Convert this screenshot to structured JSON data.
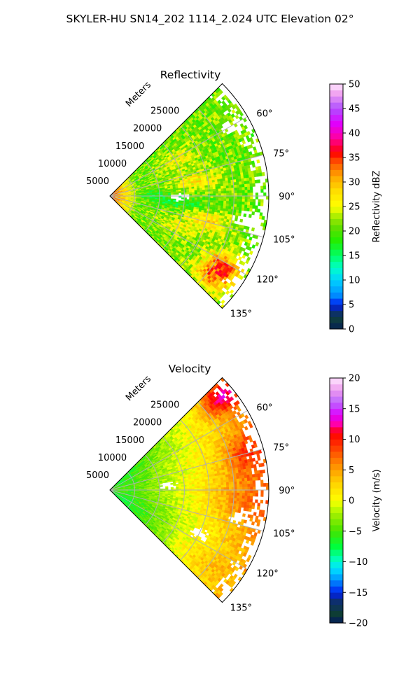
{
  "suptitle": "SKYLER-HU  SN14_202  1114_2.024 UTC Elevation 02°",
  "chart_data": [
    {
      "type": "heatmap",
      "projection": "polar sector (PPI)",
      "title": "Reflectivity",
      "range_label": "Meters",
      "range_ticks": [
        5000,
        10000,
        15000,
        20000,
        25000
      ],
      "range_tick_labels": [
        "5000",
        "10000",
        "15000",
        "20000",
        "25000"
      ],
      "rmax": 32000,
      "azimuth_range_deg": [
        45,
        135
      ],
      "azimuth_ticks": [
        60,
        75,
        90,
        105,
        120,
        135
      ],
      "azimuth_tick_labels": [
        "60°",
        "75°",
        "90°",
        "105°",
        "120°",
        "135°"
      ],
      "grid": true,
      "colorbar": {
        "label": "Reflectivity dBZ",
        "vmin": 0,
        "vmax": 50,
        "ticks": [
          0,
          5,
          10,
          15,
          20,
          25,
          30,
          35,
          40,
          45,
          50
        ],
        "tick_labels": [
          "0",
          "5",
          "10",
          "15",
          "20",
          "25",
          "30",
          "35",
          "40",
          "45",
          "50"
        ],
        "stops": [
          {
            "v": 0,
            "c": "#041b5c"
          },
          {
            "v": 1.5,
            "c": "#0e3d35"
          },
          {
            "v": 3.5,
            "c": "#0d2f6e"
          },
          {
            "v": 5,
            "c": "#0020f0"
          },
          {
            "v": 7,
            "c": "#0090ff"
          },
          {
            "v": 10,
            "c": "#00d2ff"
          },
          {
            "v": 12.5,
            "c": "#00ffc8"
          },
          {
            "v": 15,
            "c": "#00ff64"
          },
          {
            "v": 18,
            "c": "#22ee00"
          },
          {
            "v": 21,
            "c": "#66dd00"
          },
          {
            "v": 23,
            "c": "#aaee00"
          },
          {
            "v": 25,
            "c": "#ffff00"
          },
          {
            "v": 28,
            "c": "#ffe000"
          },
          {
            "v": 31,
            "c": "#ffaa00"
          },
          {
            "v": 34,
            "c": "#ff5500"
          },
          {
            "v": 36,
            "c": "#ff0000"
          },
          {
            "v": 39,
            "c": "#ff00a0"
          },
          {
            "v": 42,
            "c": "#e000ff"
          },
          {
            "v": 45,
            "c": "#b050ff"
          },
          {
            "v": 48,
            "c": "#f0a0f0"
          },
          {
            "v": 50,
            "c": "#ffe8ff"
          }
        ]
      },
      "field": {
        "base": 21,
        "near_range_boost": {
          "value": 14,
          "max_range": 6000
        },
        "features": [
          {
            "az": 62,
            "r": 15000,
            "sr": 4000,
            "sa": 7,
            "dv": 5
          },
          {
            "az": 80,
            "r": 18000,
            "sr": 5000,
            "sa": 6,
            "dv": 6
          },
          {
            "az": 95,
            "r": 13000,
            "sr": 6000,
            "sa": 7,
            "dv": -4
          },
          {
            "az": 105,
            "r": 20000,
            "sr": 5000,
            "sa": 6,
            "dv": 7
          },
          {
            "az": 115,
            "r": 15000,
            "sr": 4000,
            "sa": 5,
            "dv": 5
          },
          {
            "az": 122,
            "r": 27000,
            "sr": 4000,
            "sa": 6,
            "dv": 13
          },
          {
            "az": 130,
            "r": 26000,
            "sr": 4000,
            "sa": 5,
            "dv": 9
          },
          {
            "az": 88,
            "r": 9000,
            "sr": 3000,
            "sa": 5,
            "dv": -3
          }
        ],
        "noise": 3.5,
        "gaps": [
          {
            "az": 91,
            "r": 14000,
            "sr": 2000,
            "sa": 4
          },
          {
            "az": 100,
            "r": 28000,
            "sr": 3000,
            "sa": 5
          },
          {
            "az": 60,
            "r": 28000,
            "sr": 2500,
            "sa": 3
          }
        ],
        "ragged_edge_from": 28000
      }
    },
    {
      "type": "heatmap",
      "projection": "polar sector (PPI)",
      "title": "Velocity",
      "range_label": "Meters",
      "range_ticks": [
        5000,
        10000,
        15000,
        20000,
        25000
      ],
      "range_tick_labels": [
        "5000",
        "10000",
        "15000",
        "20000",
        "25000"
      ],
      "rmax": 32000,
      "azimuth_range_deg": [
        45,
        135
      ],
      "azimuth_ticks": [
        60,
        75,
        90,
        105,
        120,
        135
      ],
      "azimuth_tick_labels": [
        "60°",
        "75°",
        "90°",
        "105°",
        "120°",
        "135°"
      ],
      "grid": true,
      "colorbar": {
        "label": "Velocity (m/s)",
        "vmin": -20,
        "vmax": 20,
        "ticks": [
          -20,
          -15,
          -10,
          -5,
          0,
          5,
          10,
          15,
          20
        ],
        "tick_labels": [
          "−20",
          "−15",
          "−10",
          "−5",
          "0",
          "5",
          "10",
          "15",
          "20"
        ],
        "stops": [
          {
            "v": -20,
            "c": "#041b5c"
          },
          {
            "v": -18.5,
            "c": "#0e3d35"
          },
          {
            "v": -16.5,
            "c": "#0d2f6e"
          },
          {
            "v": -15,
            "c": "#0020f0"
          },
          {
            "v": -13,
            "c": "#0090ff"
          },
          {
            "v": -11,
            "c": "#00e6ff"
          },
          {
            "v": -9.5,
            "c": "#00ffb4"
          },
          {
            "v": -7.5,
            "c": "#00ff3c"
          },
          {
            "v": -5,
            "c": "#44e400"
          },
          {
            "v": -2.5,
            "c": "#99ee00"
          },
          {
            "v": -1,
            "c": "#ccff00"
          },
          {
            "v": 0,
            "c": "#ffff00"
          },
          {
            "v": 3,
            "c": "#ffd000"
          },
          {
            "v": 6,
            "c": "#ff8800"
          },
          {
            "v": 9,
            "c": "#ff3300"
          },
          {
            "v": 11,
            "c": "#ff0000"
          },
          {
            "v": 12.5,
            "c": "#ff00aa"
          },
          {
            "v": 14,
            "c": "#dd00ff"
          },
          {
            "v": 16,
            "c": "#bb66ff"
          },
          {
            "v": 18,
            "c": "#ee99ee"
          },
          {
            "v": 20,
            "c": "#ffe8ff"
          }
        ]
      },
      "field": {
        "base": -8,
        "range_gradient": {
          "per_km": 0.42,
          "start": 4000
        },
        "az_gradient": {
          "center": 85,
          "width": 40,
          "value": 3
        },
        "features": [
          {
            "az": 50,
            "r": 29000,
            "sr": 4000,
            "sa": 6,
            "dv": 9
          },
          {
            "az": 75,
            "r": 28000,
            "sr": 4000,
            "sa": 8,
            "dv": 4
          },
          {
            "az": 95,
            "r": 26000,
            "sr": 5000,
            "sa": 10,
            "dv": 2
          },
          {
            "az": 128,
            "r": 22000,
            "sr": 6000,
            "sa": 7,
            "dv": 2
          }
        ],
        "noise": 1.6,
        "gaps": [
          {
            "az": 86,
            "r": 12000,
            "sr": 2000,
            "sa": 4
          },
          {
            "az": 102,
            "r": 27000,
            "sr": 3000,
            "sa": 4
          },
          {
            "az": 116,
            "r": 20000,
            "sr": 2000,
            "sa": 4
          }
        ],
        "ragged_edge_from": 28000
      }
    }
  ]
}
